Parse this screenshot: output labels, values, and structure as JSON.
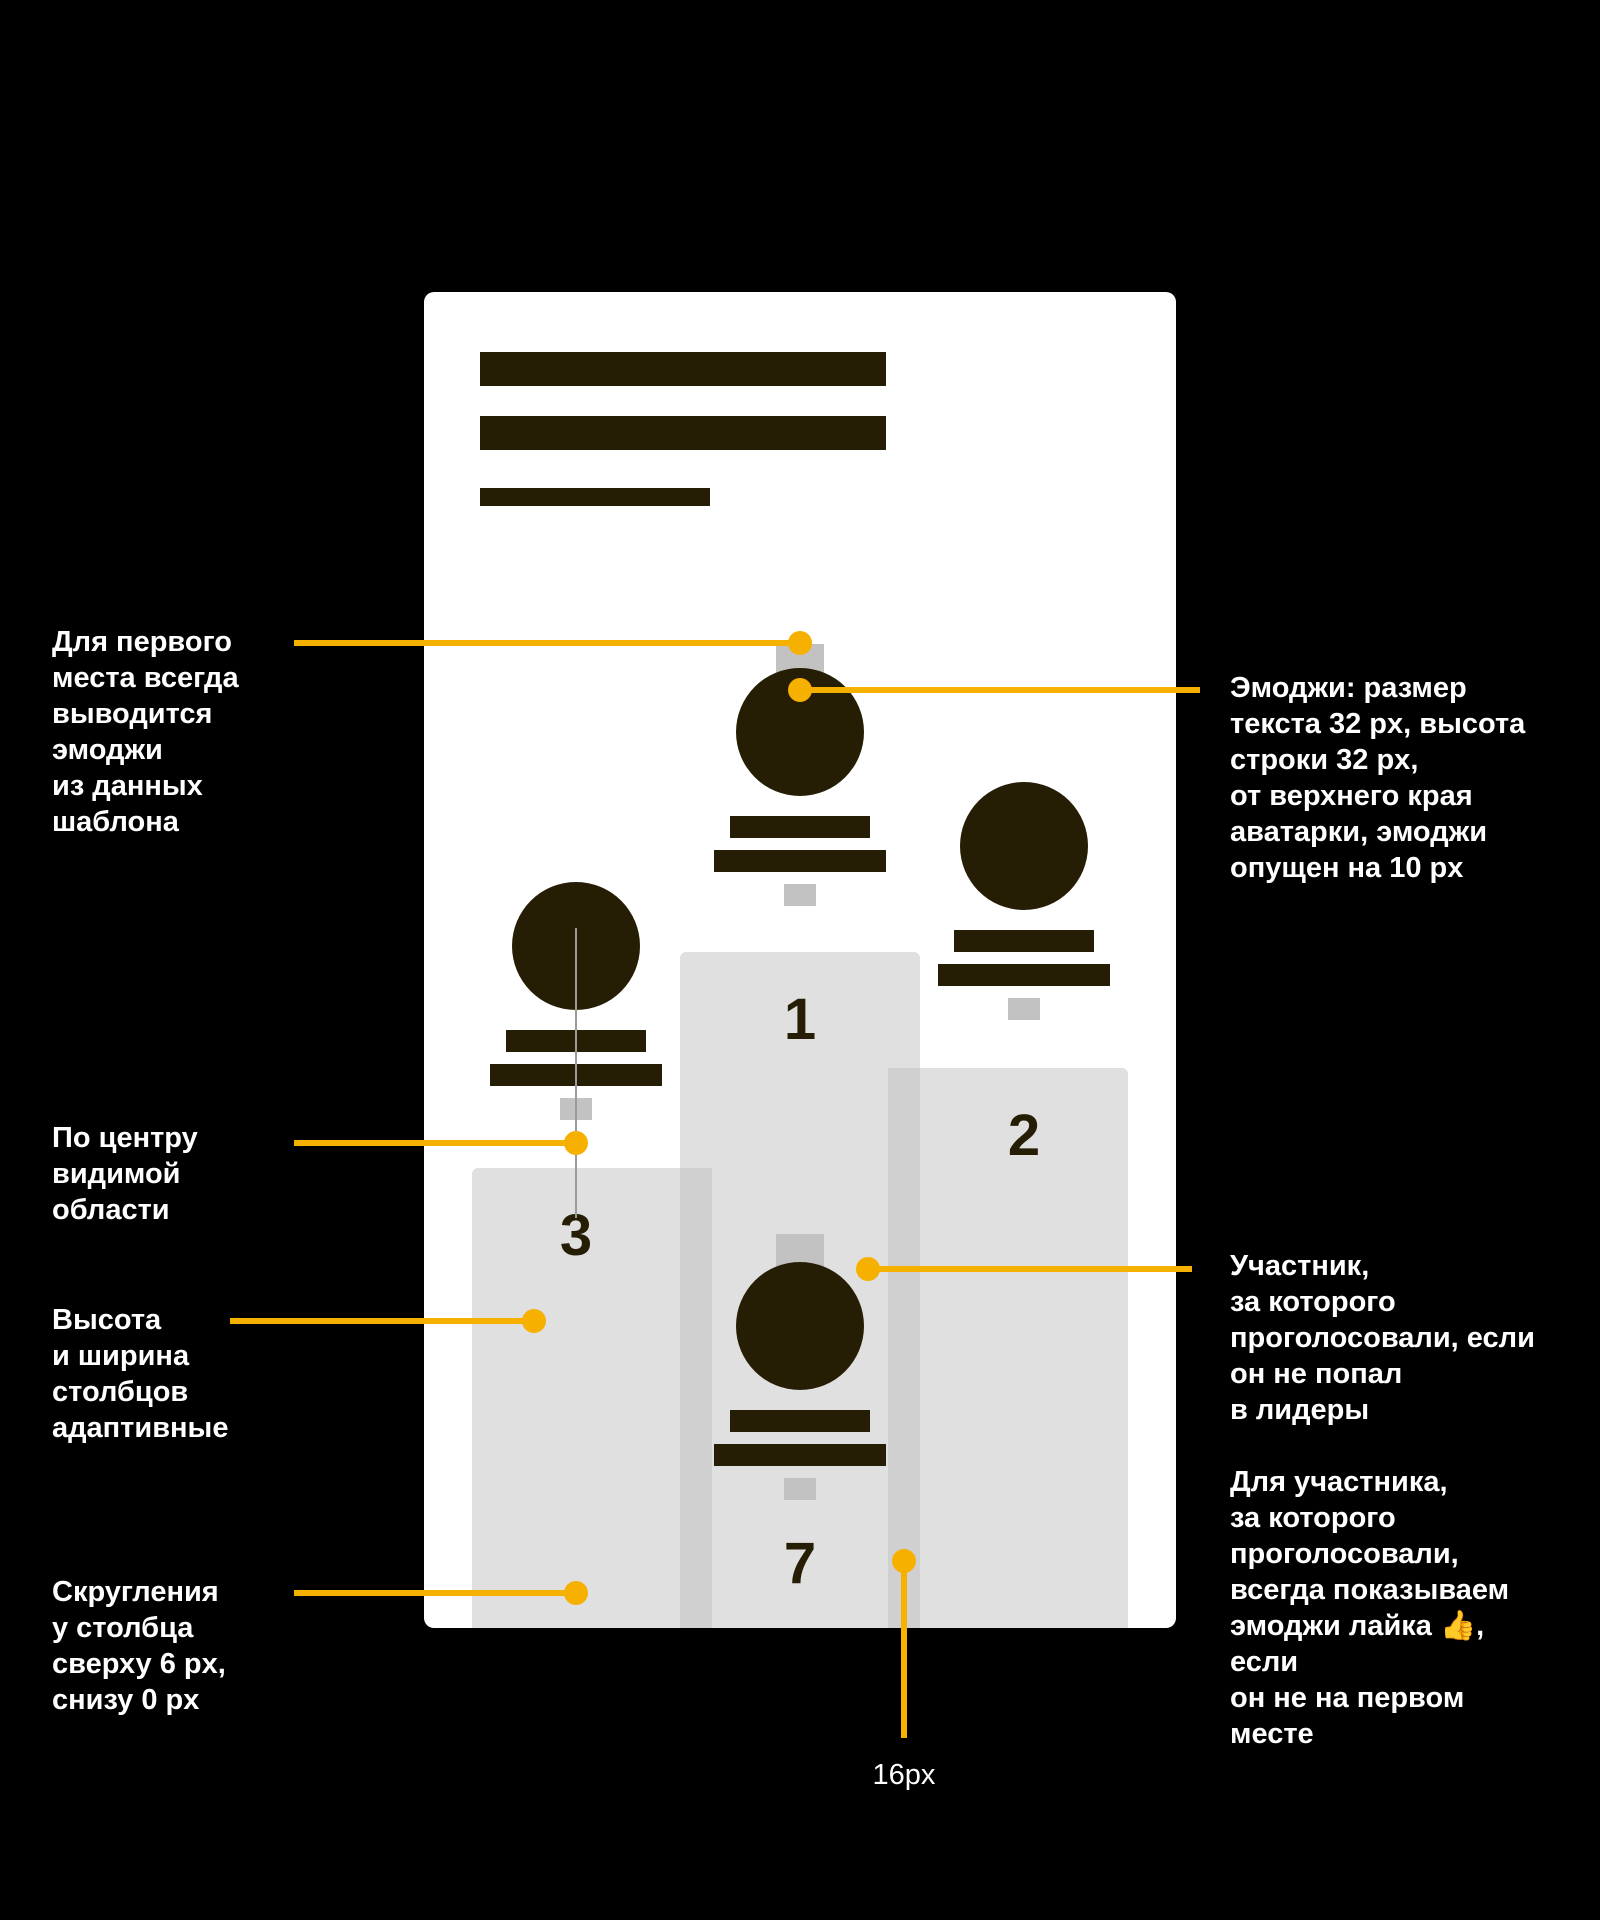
{
  "colors": {
    "background": "#000000",
    "card": "#ffffff",
    "text_bar": "#261e04",
    "column": "#e0e0e0",
    "column_overlap": "#d0d0d0",
    "emoji_placeholder": "#c2c2c2",
    "accent": "#f5b000",
    "guide": "#9a9a9a"
  },
  "podium": {
    "first": {
      "rank": "1",
      "avatar_icon": "avatar-circle",
      "emoji_icon": "emoji-placeholder"
    },
    "second": {
      "rank": "2",
      "avatar_icon": "avatar-circle"
    },
    "third": {
      "rank": "3",
      "avatar_icon": "avatar-circle"
    },
    "voted": {
      "rank": "7",
      "avatar_icon": "avatar-circle",
      "emoji_icon": "emoji-placeholder"
    }
  },
  "annotations": {
    "first_place_emoji": "Для первого\nместа всегда\nвыводится\nэмоджи\nиз данных\nшаблона",
    "emoji_size": "Эмоджи: размер\nтекста 32 px, высота\nстроки 32 px,\nот верхнего края\nаватарки, эмоджи\nопущен на 10 px",
    "center_visible": "По центру\nвидимой\nобласти",
    "adaptive_columns": "Высота\nи ширина\nстолбцов\nадаптивные",
    "column_radius": "Скругления\nу столбца\nсверху 6 px,\nснизу 0 px",
    "voted_participant": "Участник,\nза которого\nпроголосовали, если\nон не попал\nв лидеры",
    "like_emoji_prefix": "Для участника,\nза которого\nпроголосовали,\nвсегда показываем\nэмоджи лайка ",
    "like_emoji_glyph": "👍",
    "like_emoji_suffix": ",\nесли\nон не на первом\nместе",
    "gap_label": "16px"
  }
}
